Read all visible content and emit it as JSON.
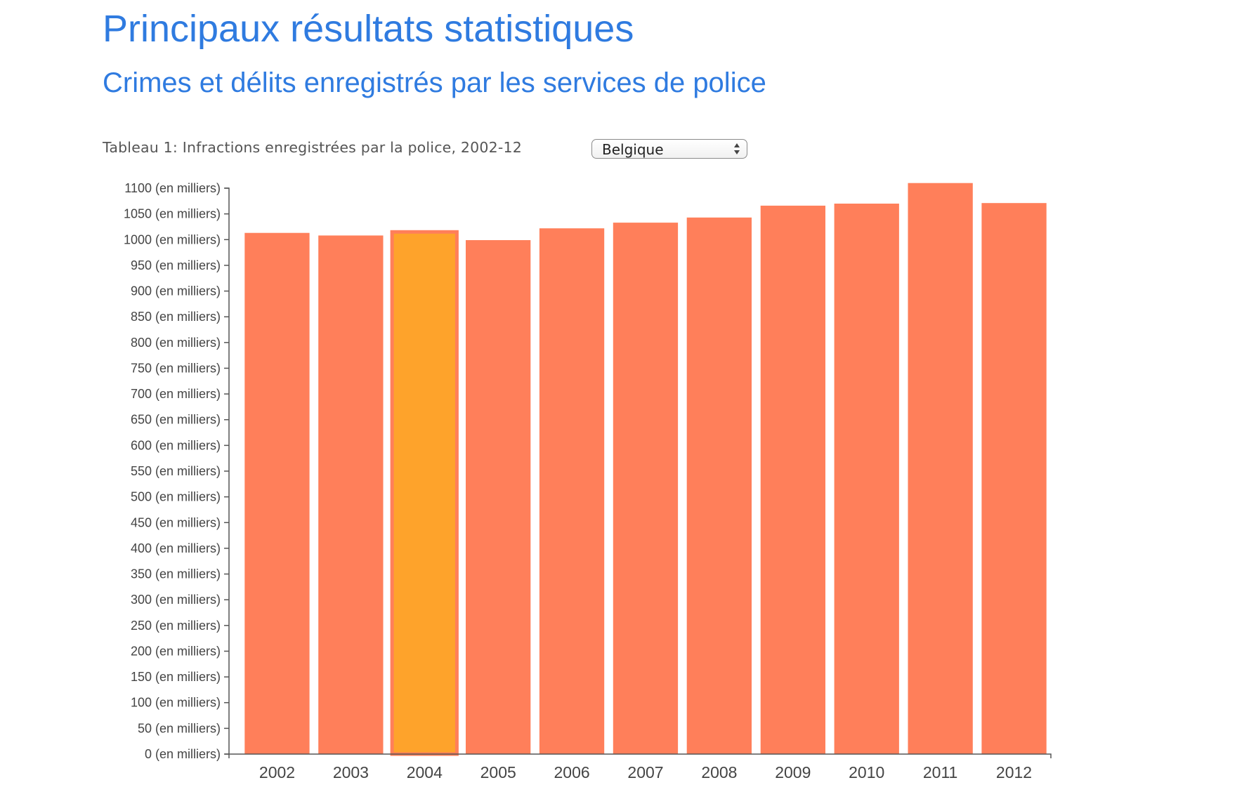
{
  "header": {
    "title": "Principaux résultats statistiques",
    "subtitle": "Crimes et délits enregistrés par les services de police"
  },
  "controls": {
    "caption": "Tableau 1: Infractions enregistrées par la police, 2002-12",
    "country_select": {
      "selected": "Belgique"
    }
  },
  "chart_data": {
    "type": "bar",
    "categories": [
      "2002",
      "2003",
      "2004",
      "2005",
      "2006",
      "2007",
      "2008",
      "2009",
      "2010",
      "2011",
      "2012"
    ],
    "values": [
      1013,
      1008,
      1015,
      999,
      1022,
      1033,
      1043,
      1066,
      1070,
      1110,
      1071
    ],
    "ylim": [
      0,
      1100
    ],
    "yticks": [
      0,
      50,
      100,
      150,
      200,
      250,
      300,
      350,
      400,
      450,
      500,
      550,
      600,
      650,
      700,
      750,
      800,
      850,
      900,
      950,
      1000,
      1050,
      1100
    ],
    "ytick_suffix": " (en milliers)",
    "highlighted_category": "2004",
    "colors": {
      "bar": "#ff7f5a",
      "highlight": "#fea32b",
      "axis": "#555555"
    },
    "grid": false
  }
}
